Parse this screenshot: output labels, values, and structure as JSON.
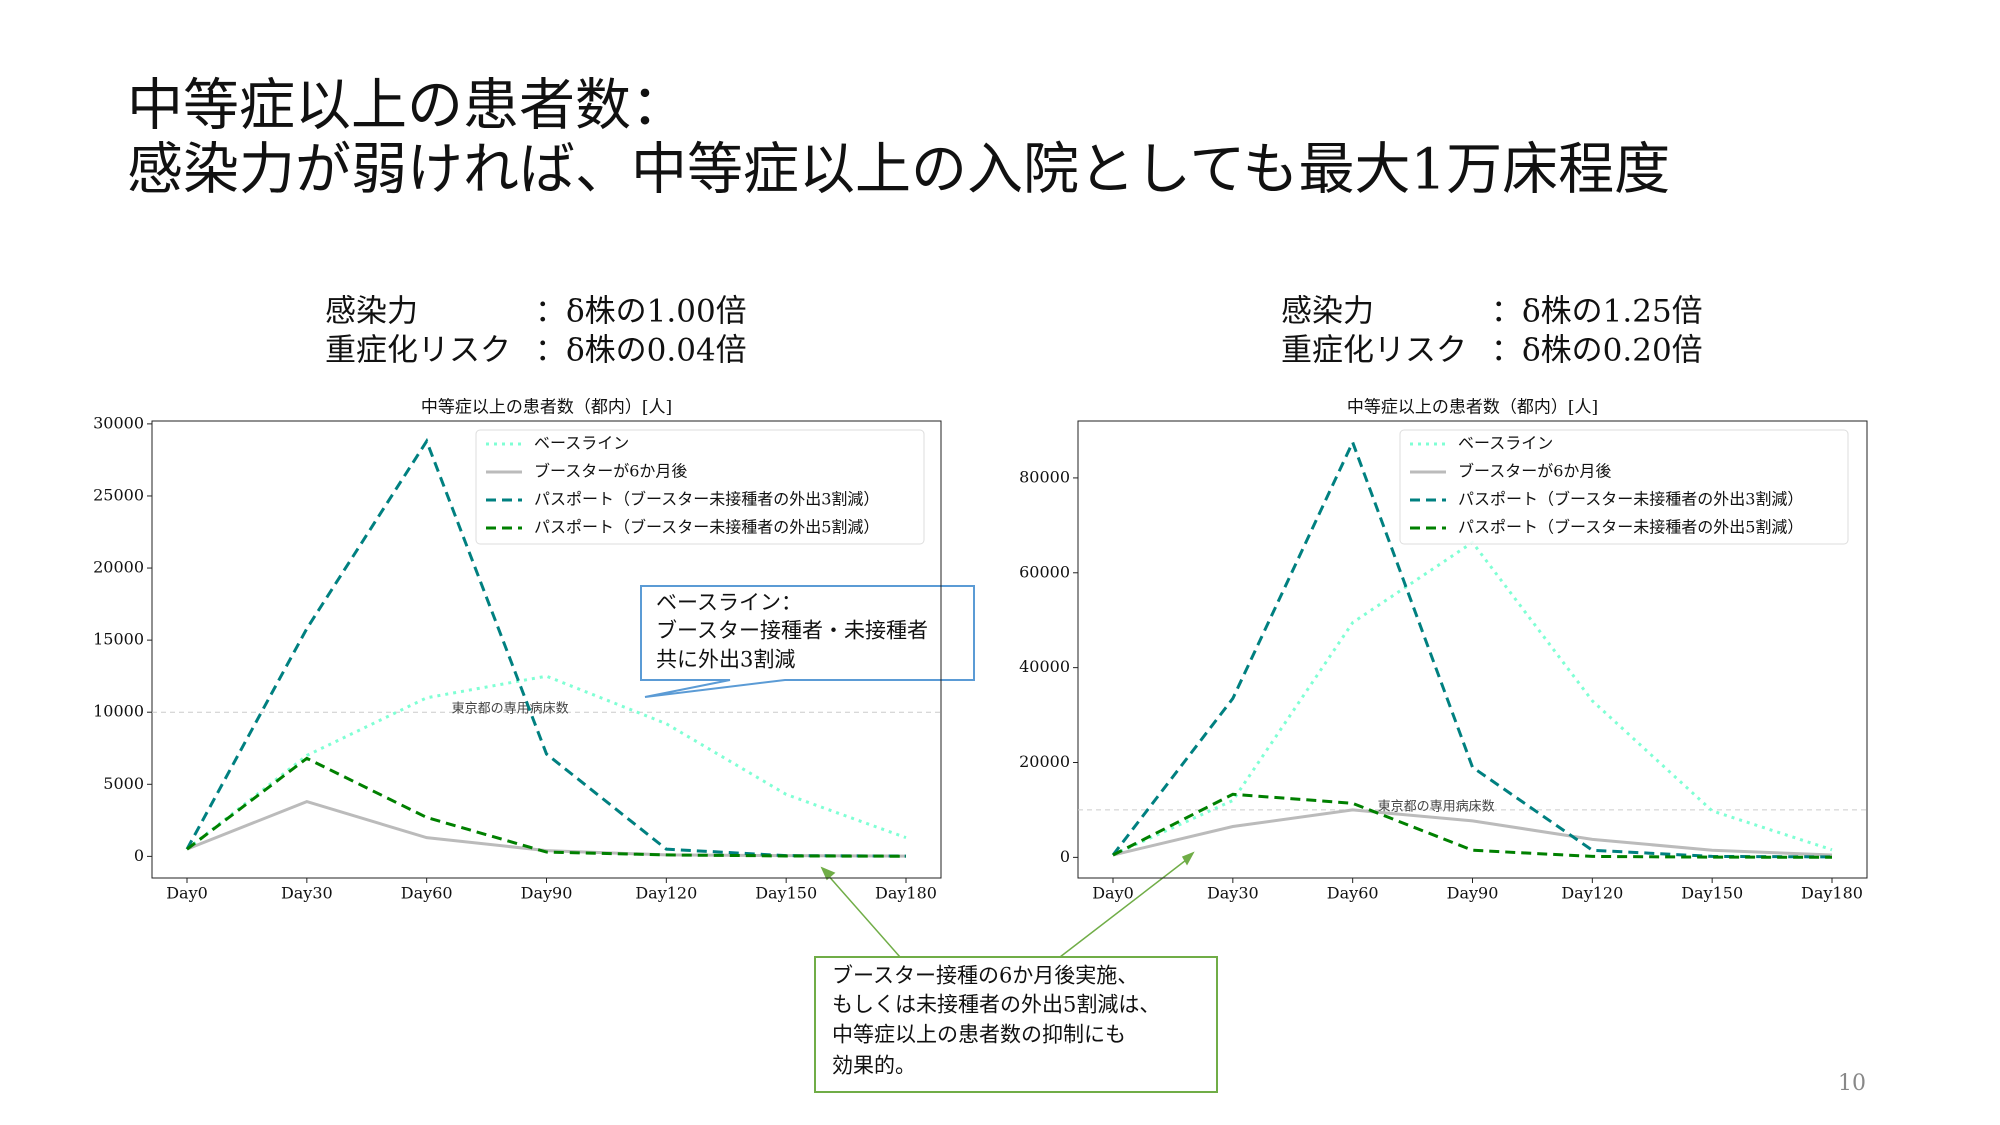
{
  "slide": {
    "title": [
      "中等症以上の患者数：",
      "感染力が弱ければ、中等症以上の入院としても最大1万床程度"
    ],
    "callouts": [
      [
        "ベースライン：",
        "ブースター接種者・未接種者",
        "共に外出3割減"
      ],
      [
        "ブースター接種の6か月後実施、",
        "もしくは未接種者の外出5割減は、",
        "中等症以上の患者数の抑制にも",
        "効果的。"
      ]
    ],
    "page_number": "10"
  },
  "chart_data": [
    {
      "type": "line",
      "conditions": [
        [
          "感染力",
          "：δ株の1.00倍"
        ],
        [
          "重症化リスク",
          "：δ株の0.04倍"
        ]
      ],
      "title": "中等症以上の患者数（都内）[人]",
      "categories": [
        "Day0",
        "Day30",
        "Day60",
        "Day90",
        "Day120",
        "Day150",
        "Day180"
      ],
      "ylim": [
        -1500,
        30200
      ],
      "yticks": [
        0,
        5000,
        10000,
        15000,
        20000,
        25000,
        30000
      ],
      "hline": {
        "value": 10000,
        "label": "東京都の専用病床数"
      },
      "series": [
        {
          "name": "ベースライン",
          "color": "#7fffd4",
          "dash": "dotted",
          "values": [
            500,
            7000,
            11000,
            12500,
            9200,
            4300,
            1300
          ]
        },
        {
          "name": "ブースターが6か月後",
          "color": "#bbbbbb",
          "dash": "solid",
          "values": [
            500,
            3800,
            1300,
            400,
            100,
            50,
            20
          ]
        },
        {
          "name": "パスポート（ブースター未接種者の外出3割減）",
          "color": "#008080",
          "dash": "dashed",
          "values": [
            500,
            15800,
            28800,
            7100,
            500,
            50,
            20
          ]
        },
        {
          "name": "パスポート（ブースター未接種者の外出5割減）",
          "color": "#008000",
          "dash": "dashed",
          "values": [
            500,
            6800,
            2700,
            300,
            100,
            30,
            10
          ]
        }
      ]
    },
    {
      "type": "line",
      "conditions": [
        [
          "感染力",
          "：δ株の1.25倍"
        ],
        [
          "重症化リスク",
          "：δ株の0.20倍"
        ]
      ],
      "title": "中等症以上の患者数（都内）[人]",
      "categories": [
        "Day0",
        "Day30",
        "Day60",
        "Day90",
        "Day120",
        "Day150",
        "Day180"
      ],
      "ylim": [
        -4350,
        92000
      ],
      "yticks": [
        0,
        20000,
        40000,
        60000,
        80000
      ],
      "hline": {
        "value": 10000,
        "label": "東京都の専用病床数"
      },
      "series": [
        {
          "name": "ベースライン",
          "color": "#7fffd4",
          "dash": "dotted",
          "values": [
            500,
            12000,
            49500,
            66400,
            33000,
            9800,
            1600
          ]
        },
        {
          "name": "ブースターが6か月後",
          "color": "#bbbbbb",
          "dash": "solid",
          "values": [
            500,
            6500,
            10000,
            7700,
            3800,
            1500,
            500
          ]
        },
        {
          "name": "パスポート（ブースター未接種者の外出3割減）",
          "color": "#008080",
          "dash": "dashed",
          "values": [
            500,
            33500,
            87500,
            19000,
            1500,
            200,
            100
          ]
        },
        {
          "name": "パスポート（ブースター未接種者の外出5割減）",
          "color": "#008000",
          "dash": "dashed",
          "values": [
            500,
            13300,
            11400,
            1500,
            200,
            50,
            20
          ]
        }
      ]
    }
  ]
}
